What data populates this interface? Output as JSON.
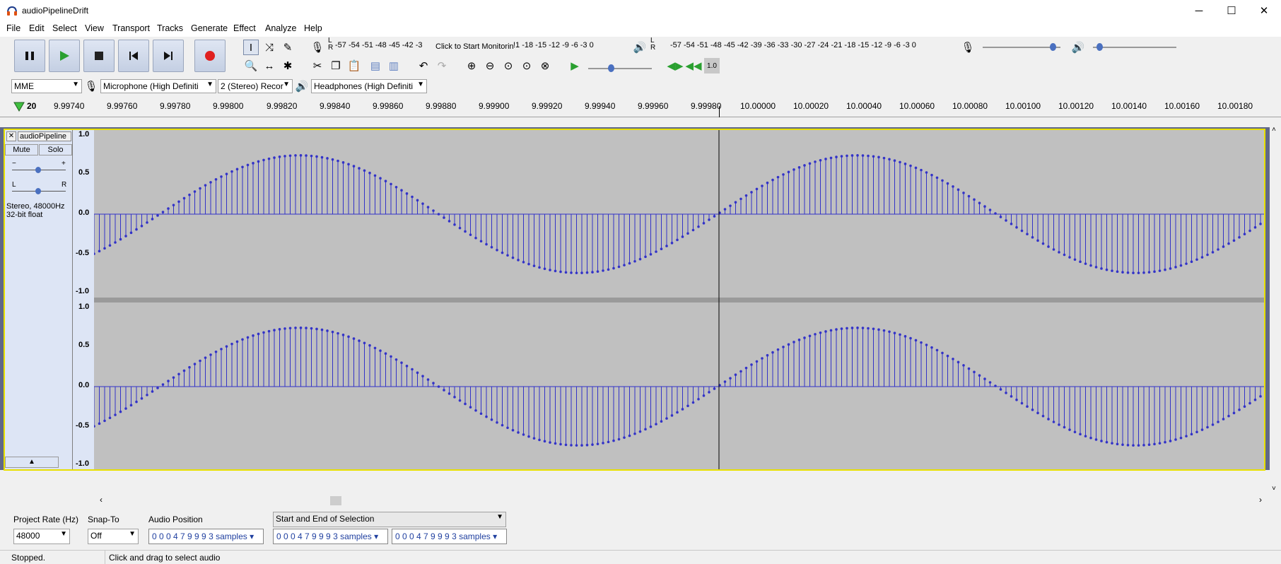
{
  "window": {
    "title": "audioPipelineDrift",
    "minimize": "─",
    "maximize": "☐",
    "close": "✕"
  },
  "menu": [
    "File",
    "Edit",
    "Select",
    "View",
    "Transport",
    "Tracks",
    "Generate",
    "Effect",
    "Analyze",
    "Help"
  ],
  "meters": {
    "record_scale": "-57 -54 -51 -48 -45 -42 -3",
    "record_prompt": "Click to Start Monitoring",
    "record_scale_tail": "!1 -18 -15 -12  -9  -6  -3  0",
    "play_scale": "-57 -54 -51 -48 -45 -42 -39 -36 -33 -30 -27 -24 -21 -18 -15 -12  -9  -6  -3  0",
    "lr": [
      "L",
      "R"
    ]
  },
  "devices": {
    "host": "MME",
    "input": "Microphone (High Definiti",
    "channels": "2 (Stereo) Recor",
    "output": "Headphones (High Definiti"
  },
  "ruler": {
    "labels": [
      "20",
      "9.99740",
      "9.99760",
      "9.99780",
      "9.99800",
      "9.99820",
      "9.99840",
      "9.99860",
      "9.99880",
      "9.99900",
      "9.99920",
      "9.99940",
      "9.99960",
      "9.99980",
      "10.00000",
      "10.00020",
      "10.00040",
      "10.00060",
      "10.00080",
      "10.00100",
      "10.00120",
      "10.00140",
      "10.00160",
      "10.00180"
    ]
  },
  "track": {
    "name": "audioPipeline",
    "mute": "Mute",
    "solo": "Solo",
    "info_line1": "Stereo, 48000Hz",
    "info_line2": "32-bit float",
    "gain_minus": "−",
    "gain_plus": "+",
    "pan_l": "L",
    "pan_r": "R",
    "vscale": [
      "1.0",
      "0.5",
      "0.0",
      "-0.5",
      "-1.0"
    ]
  },
  "bottom": {
    "project_rate_label": "Project Rate (Hz)",
    "project_rate_value": "48000",
    "snap_label": "Snap-To",
    "snap_value": "Off",
    "audio_position_label": "Audio Position",
    "audio_position_value": "0 0 0 4 7 9 9 9 3 samples",
    "selection_mode": "Start and End of Selection",
    "selection_start": "0 0 0 4 7 9 9 9 3 samples",
    "selection_end": "0 0 0 4 7 9 9 9 3 samples"
  },
  "status": {
    "state": "Stopped.",
    "hint": "Click and drag to select audio"
  },
  "colors": {
    "waveform": "#3232c8",
    "track_bg": "#c0c0c0",
    "selection_border": "#e8e000",
    "track_area": "#606888"
  }
}
